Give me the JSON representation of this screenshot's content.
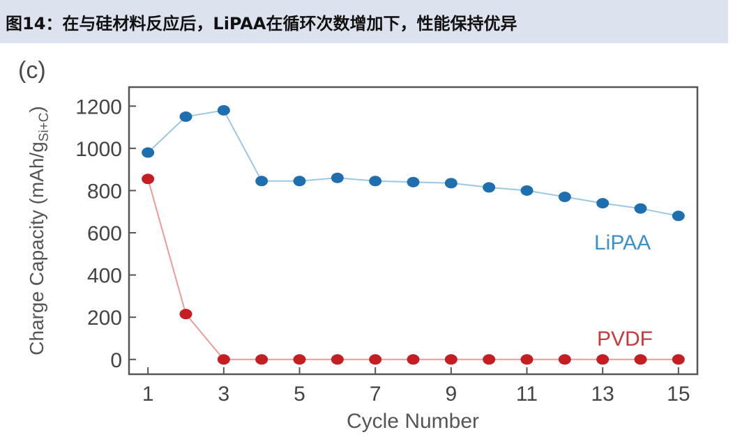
{
  "figure": {
    "title": "图14：在与硅材料反应后，LiPAA在循环次数增加下，性能保持优异"
  },
  "chart_data": {
    "type": "line",
    "panel_label": "(c)",
    "xlabel": "Cycle Number",
    "ylabel": "Charge Capacity (mAh/g",
    "ylabel_sub": "Si+C",
    "ylabel_close": ")",
    "xlim": [
      0.5,
      15.5
    ],
    "ylim": [
      -70,
      1290
    ],
    "xticks": [
      1,
      3,
      5,
      7,
      9,
      11,
      13,
      15
    ],
    "yticks": [
      0,
      200,
      400,
      600,
      800,
      1000,
      1200
    ],
    "grid": false,
    "x": [
      1,
      2,
      3,
      4,
      5,
      6,
      7,
      8,
      9,
      10,
      11,
      12,
      13,
      14,
      15
    ],
    "series": [
      {
        "name": "LiPAA",
        "color": "#1f6fb0",
        "line_color": "#9cc7e2",
        "label_color": "#3d8fc8",
        "values": [
          980,
          1150,
          1180,
          845,
          845,
          860,
          845,
          840,
          835,
          815,
          800,
          770,
          740,
          715,
          680
        ]
      },
      {
        "name": "PVDF",
        "color": "#c41e23",
        "line_color": "#ec9a9a",
        "label_color": "#c6393d",
        "values": [
          855,
          215,
          0,
          0,
          0,
          0,
          0,
          0,
          0,
          0,
          0,
          0,
          0,
          0,
          0
        ]
      }
    ]
  }
}
